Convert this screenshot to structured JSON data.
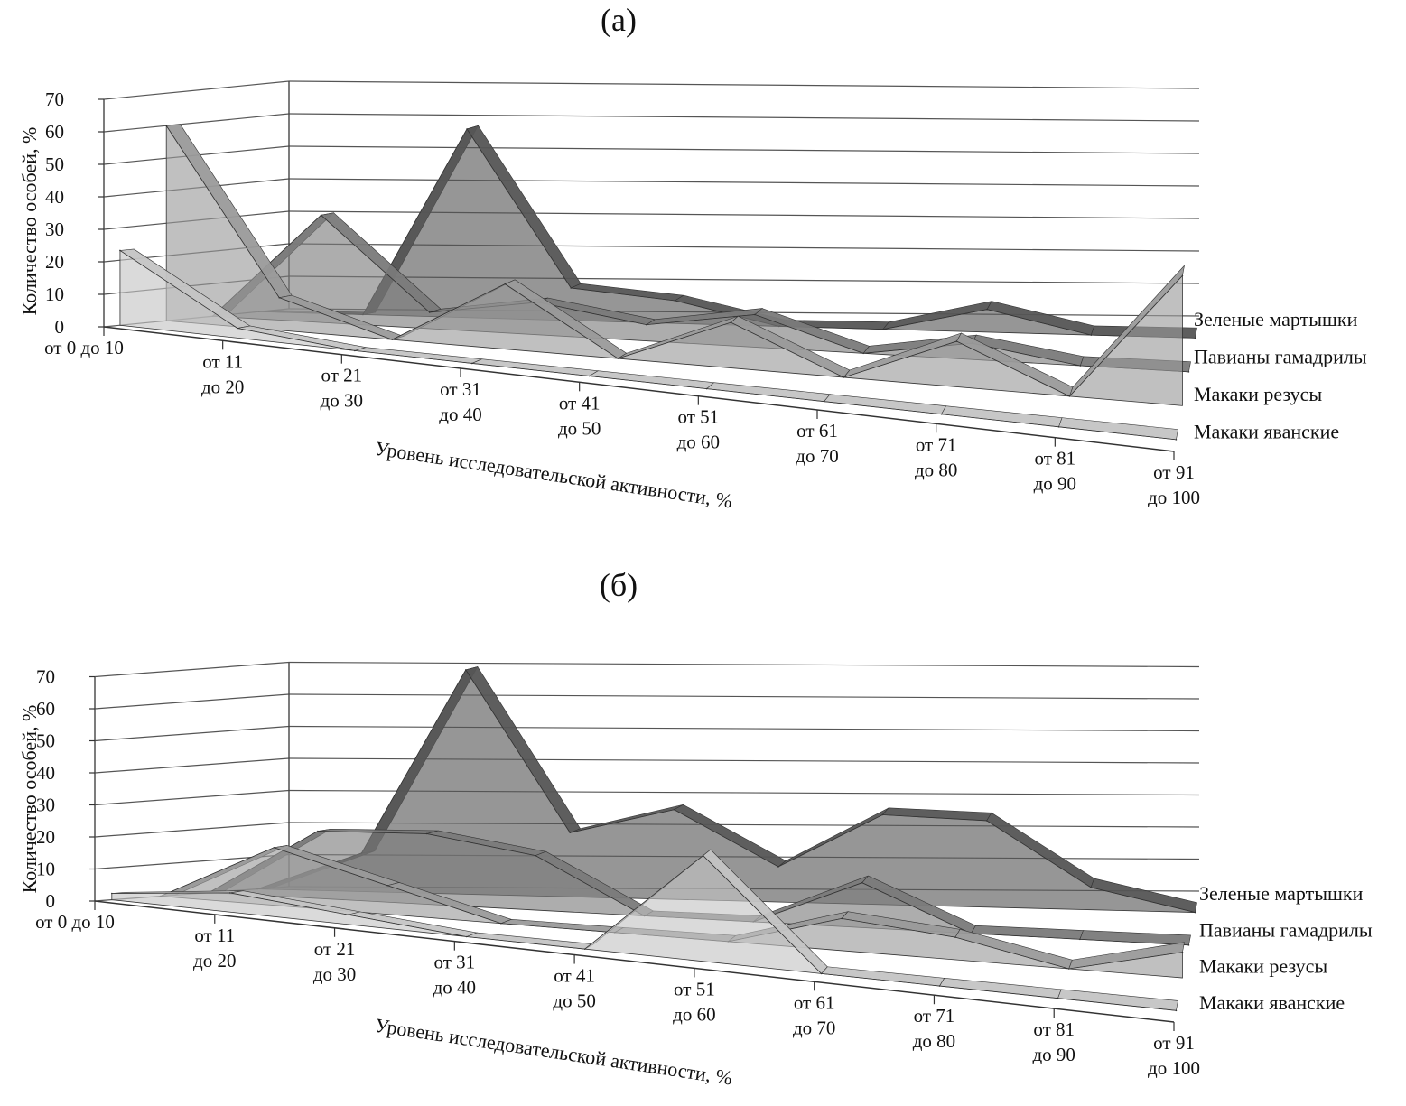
{
  "chart_data": [
    {
      "type": "area",
      "variant": "3d-area",
      "title": "(а)",
      "xlabel": "Уровень исследовательской активности, %",
      "ylabel": "Количество особей, %",
      "ylim": [
        0,
        70
      ],
      "yticks": [
        "0",
        "10",
        "20",
        "30",
        "40",
        "50",
        "60",
        "70"
      ],
      "categories": [
        [
          "от 0 до 10"
        ],
        [
          "от 11",
          "до 20"
        ],
        [
          "от 21",
          "до 30"
        ],
        [
          "от 31",
          "до 40"
        ],
        [
          "от 41",
          "до 50"
        ],
        [
          "от 51",
          "до 60"
        ],
        [
          "от 61",
          "до 70"
        ],
        [
          "от 71",
          "до 80"
        ],
        [
          "от 81",
          "до 90"
        ],
        [
          "от 91",
          "до 100"
        ]
      ],
      "grid": true,
      "legend_position": "right",
      "series": [
        {
          "name": "Макаки яванские",
          "color": "#c4c4c4",
          "values": [
            23,
            3,
            0,
            0,
            0,
            0,
            0,
            0,
            0,
            0
          ]
        },
        {
          "name": "Макаки резусы",
          "color": "#9a9a9a",
          "values": [
            60,
            10,
            0,
            20,
            0,
            14,
            0,
            14,
            0,
            40
          ]
        },
        {
          "name": "Павианы гамадрилы",
          "color": "#7a7a7a",
          "values": [
            0,
            33,
            5,
            10,
            5,
            10,
            0,
            5,
            0,
            0
          ]
        },
        {
          "name": "Зеленые мартышки",
          "color": "#555555",
          "values": [
            0,
            0,
            58,
            10,
            7,
            0,
            0,
            7,
            0,
            0
          ]
        }
      ]
    },
    {
      "type": "area",
      "variant": "3d-area",
      "title": "(б)",
      "xlabel": "Уровень исследовательской активности, %",
      "ylabel": "Количество особей, %",
      "ylim": [
        0,
        70
      ],
      "yticks": [
        "0",
        "10",
        "20",
        "30",
        "40",
        "50",
        "60",
        "70"
      ],
      "categories": [
        [
          "от 0 до 10"
        ],
        [
          "от 11",
          "до 20"
        ],
        [
          "от 21",
          "до 30"
        ],
        [
          "от 31",
          "до 40"
        ],
        [
          "от 41",
          "до 50"
        ],
        [
          "от 51",
          "до 60"
        ],
        [
          "от 61",
          "до 70"
        ],
        [
          "от 71",
          "до 80"
        ],
        [
          "от 81",
          "до 90"
        ],
        [
          "от 91",
          "до 100"
        ]
      ],
      "grid": true,
      "legend_position": "right",
      "series": [
        {
          "name": "Макаки яванские",
          "color": "#c4c4c4",
          "values": [
            2,
            6,
            3,
            0,
            0,
            33,
            0,
            0,
            0,
            0
          ]
        },
        {
          "name": "Макаки резусы",
          "color": "#9a9a9a",
          "values": [
            0,
            18,
            9,
            0,
            0,
            0,
            10,
            7,
            0,
            8
          ]
        },
        {
          "name": "Павианы гамадрилы",
          "color": "#7a7a7a",
          "values": [
            0,
            21,
            22,
            17,
            0,
            0,
            14,
            0,
            0,
            0
          ]
        },
        {
          "name": "Зеленые мартышки",
          "color": "#555555",
          "values": [
            0,
            12,
            70,
            20,
            28,
            11,
            28,
            27,
            7,
            0
          ]
        }
      ]
    }
  ]
}
